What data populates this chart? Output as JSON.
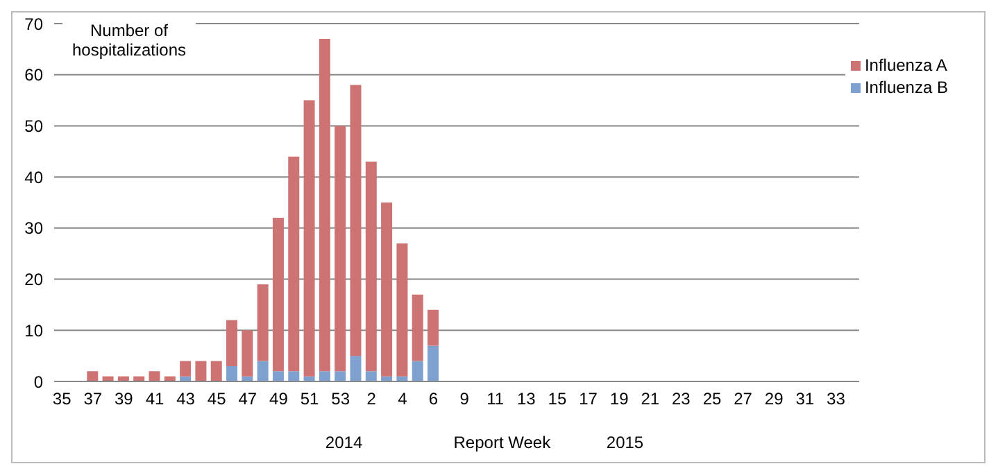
{
  "chart_data": {
    "type": "bar",
    "stacked": true,
    "ylabel": "Number of hospitalizations",
    "xlabel": "Report Week",
    "annotations": [
      "2014",
      "2015"
    ],
    "categories": [
      "35",
      null,
      "37",
      null,
      "39",
      null,
      "41",
      null,
      "43",
      null,
      "45",
      null,
      "47",
      null,
      "49",
      null,
      "51",
      null,
      "53",
      null,
      "2",
      null,
      "4",
      null,
      "6",
      null,
      "9",
      null,
      "11",
      null,
      "13",
      null,
      "15",
      null,
      "17",
      null,
      "19",
      null,
      "21",
      null,
      "23",
      null,
      "25",
      null,
      "27",
      null,
      "29",
      null,
      "31",
      null,
      "33",
      null
    ],
    "series": [
      {
        "name": "Influenza B",
        "color": "#7ea1d0",
        "values": [
          null,
          null,
          0,
          0,
          0,
          0,
          0,
          0,
          1,
          0,
          0,
          3,
          1,
          4,
          2,
          2,
          1,
          2,
          2,
          5,
          2,
          1,
          1,
          4,
          7,
          null,
          null,
          null,
          null,
          null,
          null,
          null,
          null,
          null,
          null,
          null,
          null,
          null,
          null,
          null,
          null,
          null,
          null,
          null,
          null,
          null,
          null,
          null,
          null,
          null,
          null,
          null
        ]
      },
      {
        "name": "Influenza A",
        "color": "#cd7373",
        "values": [
          null,
          null,
          2,
          1,
          1,
          1,
          2,
          1,
          3,
          4,
          4,
          9,
          9,
          15,
          30,
          42,
          54,
          65,
          48,
          53,
          41,
          34,
          26,
          13,
          7,
          null,
          null,
          null,
          null,
          null,
          null,
          null,
          null,
          null,
          null,
          null,
          null,
          null,
          null,
          null,
          null,
          null,
          null,
          null,
          null,
          null,
          null,
          null,
          null,
          null,
          null,
          null
        ]
      }
    ],
    "ylim": [
      0,
      70
    ],
    "yticks": [
      0,
      10,
      20,
      30,
      40,
      50,
      60,
      70
    ],
    "grid": "y",
    "legend": "top right"
  }
}
